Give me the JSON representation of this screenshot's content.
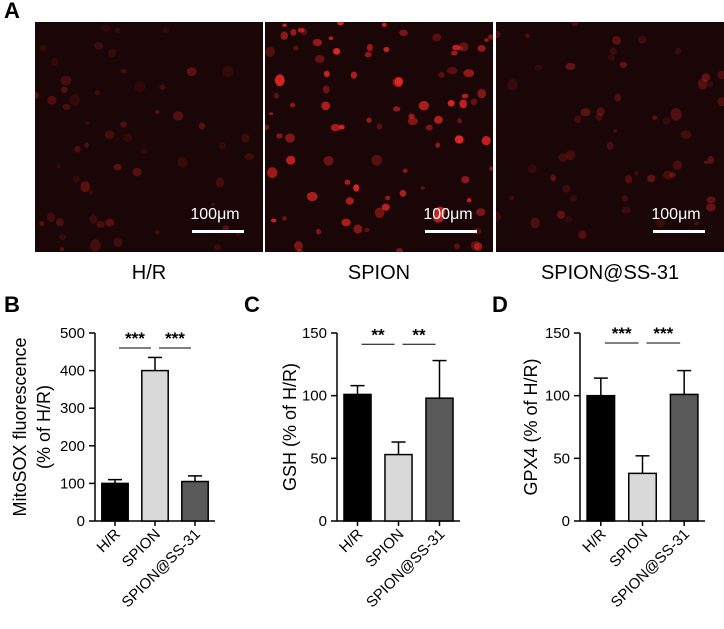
{
  "panel_letters": {
    "a": "A",
    "b": "B",
    "c": "C",
    "d": "D"
  },
  "micrographs": [
    {
      "caption": "H/R",
      "scale_bar": "100μm",
      "cell_intensity": 0.35
    },
    {
      "caption": "SPION",
      "scale_bar": "100μm",
      "cell_intensity": 1.0
    },
    {
      "caption": "SPION@SS-31",
      "scale_bar": "100μm",
      "cell_intensity": 0.4
    }
  ],
  "colors": {
    "background_dark": "#1a0606",
    "cell_red": "#ff2a2a",
    "bar_hr": "#000000",
    "bar_spion": "#d9d9d9",
    "bar_ss31": "#595959"
  },
  "chart_data": [
    {
      "type": "bar",
      "panel": "B",
      "categories": [
        "H/R",
        "SPION",
        "SPION@SS-31"
      ],
      "values": [
        100,
        400,
        105
      ],
      "errors": [
        10,
        35,
        15
      ],
      "ylabel": "MitoSOX fluorescence\n(% of H/R)",
      "ylabel_lines": [
        "MitoSOX fluorescence",
        "(% of H/R)"
      ],
      "ylim": [
        0,
        500
      ],
      "yticks": [
        0,
        100,
        200,
        300,
        400,
        500
      ],
      "significance": [
        {
          "from": 0,
          "to": 1,
          "label": "***",
          "y": 460
        },
        {
          "from": 1,
          "to": 2,
          "label": "***",
          "y": 460
        }
      ]
    },
    {
      "type": "bar",
      "panel": "C",
      "categories": [
        "H/R",
        "SPION",
        "SPION@SS-31"
      ],
      "values": [
        101,
        53,
        98
      ],
      "errors": [
        7,
        10,
        30
      ],
      "ylabel": "GSH  (% of H/R)",
      "ylabel_lines": [
        "GSH  (% of H/R)"
      ],
      "ylim": [
        0,
        150
      ],
      "yticks": [
        0,
        50,
        100,
        150
      ],
      "significance": [
        {
          "from": 0,
          "to": 1,
          "label": "**",
          "y": 141
        },
        {
          "from": 1,
          "to": 2,
          "label": "**",
          "y": 141
        }
      ]
    },
    {
      "type": "bar",
      "panel": "D",
      "categories": [
        "H/R",
        "SPION",
        "SPION@SS-31"
      ],
      "values": [
        100,
        38,
        101
      ],
      "errors": [
        14,
        14,
        19
      ],
      "ylabel": "GPX4  (% of H/R)",
      "ylabel_lines": [
        "GPX4  (% of H/R)"
      ],
      "ylim": [
        0,
        150
      ],
      "yticks": [
        0,
        50,
        100,
        150
      ],
      "significance": [
        {
          "from": 0,
          "to": 1,
          "label": "***",
          "y": 142
        },
        {
          "from": 1,
          "to": 2,
          "label": "***",
          "y": 142
        }
      ]
    }
  ]
}
